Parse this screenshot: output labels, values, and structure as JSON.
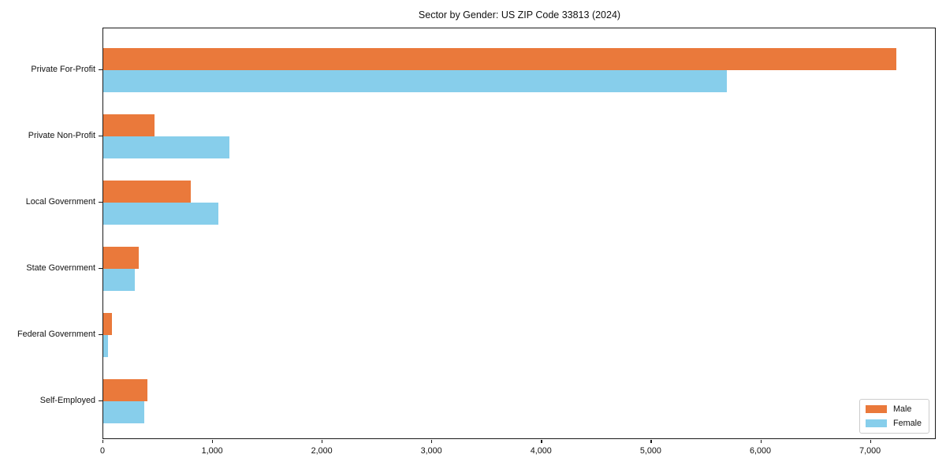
{
  "chart_data": {
    "type": "bar",
    "orientation": "horizontal",
    "title": "Sector by Gender: US ZIP Code 33813 (2024)",
    "categories": [
      "Private For-Profit",
      "Private Non-Profit",
      "Local Government",
      "State Government",
      "Federal Government",
      "Self-Employed"
    ],
    "series": [
      {
        "name": "Male",
        "color": "#EA793B",
        "values": [
          7230,
          470,
          800,
          325,
          80,
          400
        ]
      },
      {
        "name": "Female",
        "color": "#87CEEB",
        "values": [
          5690,
          1150,
          1050,
          290,
          45,
          370
        ]
      }
    ],
    "xlabel": "",
    "ylabel": "",
    "xlim": [
      0,
      7600
    ],
    "x_ticks": [
      0,
      1000,
      2000,
      3000,
      4000,
      5000,
      6000,
      7000
    ],
    "x_tick_labels": [
      "0",
      "1,000",
      "2,000",
      "3,000",
      "4,000",
      "5,000",
      "6,000",
      "7,000"
    ],
    "grid": false,
    "legend_position": "lower right"
  }
}
